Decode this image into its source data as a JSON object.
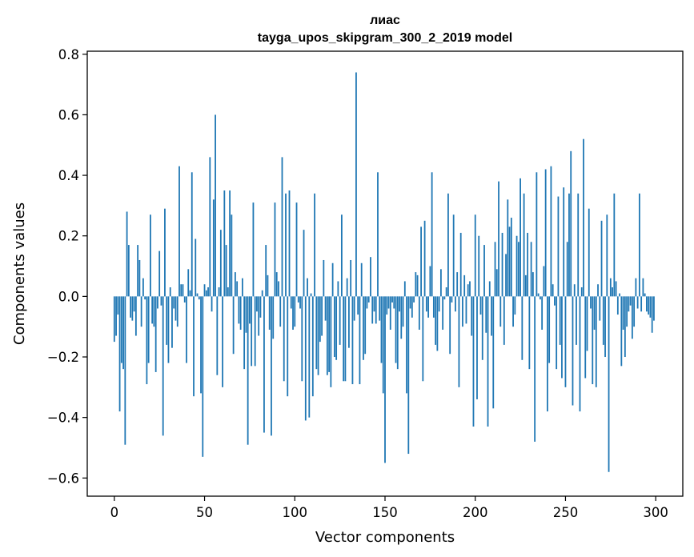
{
  "chart_data": {
    "type": "bar",
    "title_line1": "лиас",
    "title_line2": "tayga_upos_skipgram_300_2_2019 model",
    "xlabel": "Vector components",
    "ylabel": "Components values",
    "xlim": [
      -15,
      315
    ],
    "ylim": [
      -0.66,
      0.81
    ],
    "xticks": [
      0,
      50,
      100,
      150,
      200,
      250,
      300
    ],
    "yticks": [
      -0.6,
      -0.4,
      -0.2,
      0.0,
      0.2,
      0.4,
      0.6,
      0.8
    ],
    "xtick_labels": [
      "0",
      "50",
      "100",
      "150",
      "200",
      "250",
      "300"
    ],
    "ytick_labels": [
      "−0.6",
      "−0.4",
      "−0.2",
      "0.0",
      "0.2",
      "0.4",
      "0.6",
      "0.8"
    ],
    "bar_color": "#1f77b4",
    "values": [
      -0.15,
      -0.13,
      -0.06,
      -0.38,
      -0.22,
      -0.24,
      -0.49,
      0.28,
      0.17,
      -0.07,
      -0.08,
      -0.05,
      -0.13,
      0.17,
      0.12,
      -0.1,
      0.06,
      -0.01,
      -0.29,
      -0.22,
      0.27,
      -0.09,
      -0.1,
      -0.25,
      -0.04,
      0.15,
      -0.03,
      -0.46,
      0.29,
      -0.16,
      -0.22,
      0.03,
      -0.17,
      -0.04,
      -0.08,
      -0.1,
      0.43,
      0.04,
      0.04,
      -0.02,
      -0.22,
      0.09,
      0.02,
      0.41,
      -0.33,
      0.19,
      0.01,
      -0.01,
      -0.32,
      -0.53,
      0.04,
      0.02,
      0.03,
      0.46,
      -0.05,
      0.32,
      0.6,
      -0.26,
      0.03,
      0.22,
      -0.3,
      0.35,
      0.17,
      0.03,
      0.35,
      0.27,
      -0.19,
      0.08,
      0.05,
      -0.09,
      -0.11,
      0.06,
      -0.24,
      -0.12,
      -0.49,
      -0.09,
      -0.23,
      0.31,
      -0.23,
      -0.05,
      -0.13,
      -0.07,
      0.02,
      -0.45,
      0.17,
      0.07,
      -0.11,
      -0.46,
      -0.14,
      0.31,
      0.08,
      0.05,
      -0.1,
      0.46,
      -0.28,
      0.34,
      -0.33,
      0.35,
      -0.04,
      -0.11,
      -0.1,
      0.31,
      -0.02,
      -0.04,
      -0.28,
      0.22,
      -0.41,
      0.06,
      -0.4,
      0.01,
      -0.33,
      0.34,
      -0.24,
      -0.26,
      -0.15,
      -0.13,
      0.12,
      -0.08,
      -0.26,
      -0.25,
      -0.3,
      0.11,
      -0.2,
      -0.21,
      0.05,
      -0.16,
      0.27,
      -0.28,
      -0.28,
      0.06,
      -0.17,
      0.12,
      -0.29,
      -0.08,
      0.74,
      -0.06,
      -0.29,
      0.11,
      -0.21,
      -0.19,
      -0.04,
      -0.02,
      0.13,
      -0.09,
      -0.05,
      -0.09,
      0.41,
      -0.08,
      -0.22,
      -0.32,
      -0.55,
      -0.06,
      -0.04,
      -0.11,
      -0.02,
      -0.04,
      -0.22,
      -0.24,
      -0.05,
      -0.14,
      -0.1,
      0.05,
      -0.32,
      -0.52,
      -0.04,
      -0.07,
      -0.02,
      0.08,
      0.07,
      -0.11,
      0.23,
      -0.28,
      0.25,
      -0.05,
      -0.07,
      0.1,
      0.41,
      -0.07,
      -0.16,
      -0.18,
      -0.05,
      0.09,
      -0.11,
      -0.01,
      0.03,
      0.34,
      -0.19,
      -0.02,
      0.27,
      -0.05,
      0.08,
      -0.3,
      0.21,
      -0.1,
      0.07,
      -0.09,
      0.04,
      0.05,
      -0.13,
      -0.43,
      0.27,
      -0.34,
      0.2,
      -0.06,
      -0.21,
      0.17,
      -0.12,
      -0.43,
      0.05,
      -0.13,
      -0.37,
      0.18,
      0.09,
      0.38,
      -0.1,
      0.21,
      -0.16,
      0.14,
      0.32,
      0.23,
      0.26,
      -0.1,
      -0.06,
      0.2,
      0.18,
      0.39,
      -0.21,
      0.34,
      0.07,
      0.21,
      -0.24,
      0.18,
      0.08,
      -0.48,
      0.41,
      0.01,
      -0.01,
      -0.11,
      0.1,
      0.42,
      -0.38,
      -0.22,
      0.43,
      0.04,
      -0.03,
      -0.24,
      0.33,
      -0.16,
      -0.27,
      0.36,
      -0.3,
      0.18,
      0.34,
      0.48,
      -0.36,
      0.04,
      -0.16,
      0.34,
      -0.38,
      0.03,
      0.52,
      -0.27,
      -0.18,
      0.29,
      -0.04,
      -0.29,
      -0.11,
      -0.3,
      0.04,
      -0.08,
      0.25,
      -0.16,
      -0.2,
      0.27,
      -0.58,
      0.06,
      0.03,
      0.34,
      0.05,
      -0.06,
      0.01,
      -0.23,
      -0.11,
      -0.2,
      -0.1,
      -0.05,
      -0.03,
      -0.14,
      -0.1,
      0.06,
      -0.04,
      0.34,
      -0.05,
      0.06,
      0.01,
      -0.05,
      -0.06,
      -0.07,
      -0.12,
      -0.08
    ]
  }
}
